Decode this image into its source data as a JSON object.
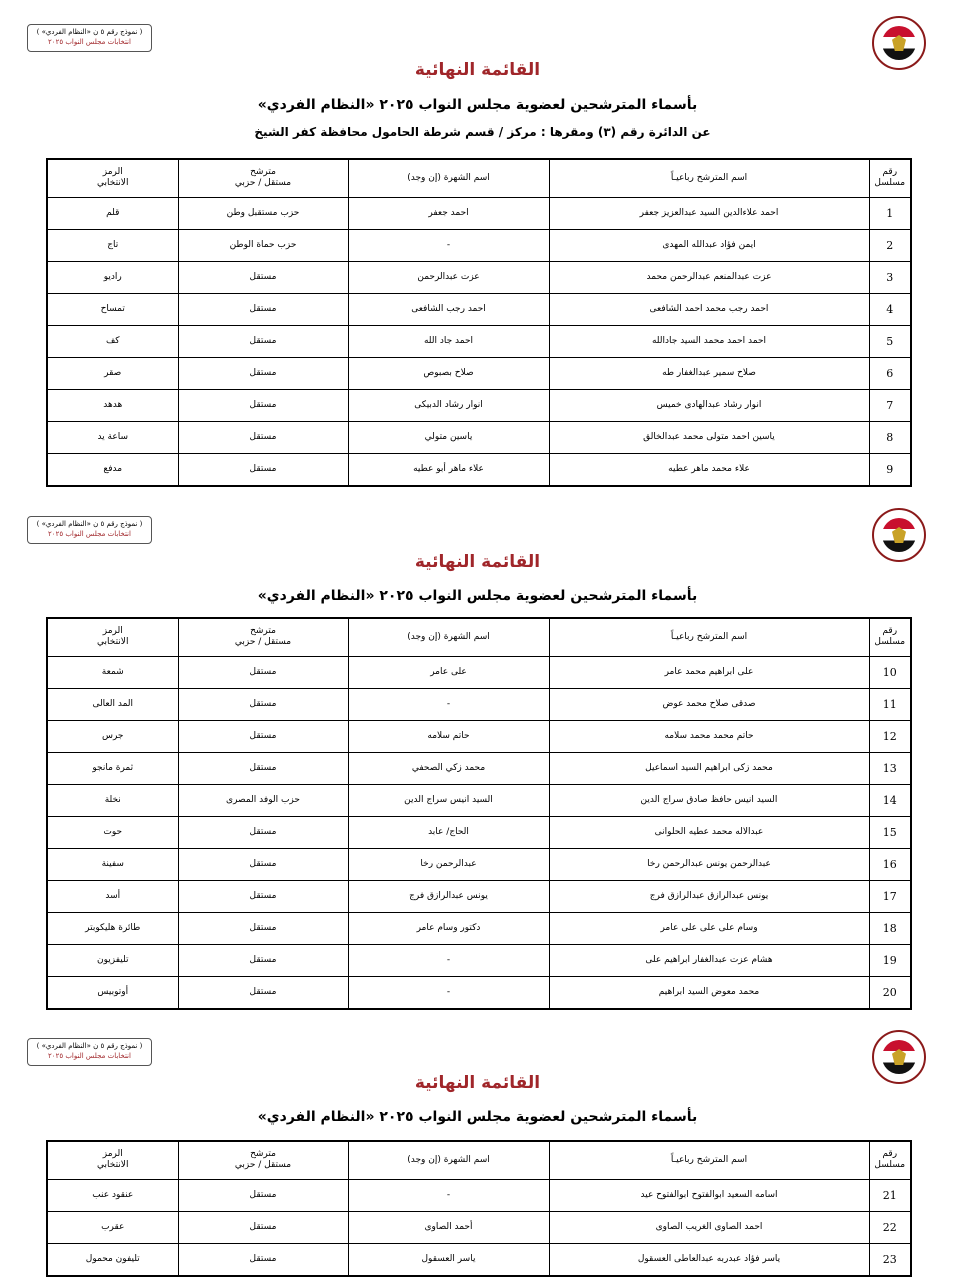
{
  "stamp": {
    "line1": "( نموذج رقم ٥ ن «النظام الفردي» )",
    "line2": "انتخابات مجلس النواب ٢٠٢٥"
  },
  "logo_icon": "egypt-national-elections-authority-logo",
  "colors": {
    "title": "#a0262a",
    "border": "#000000"
  },
  "sections": [
    {
      "title": "القائمة النهائية",
      "subtitle": "بأسماء المترشحين لعضوية مجلس النواب ٢٠٢٥ «النظام الفردي»",
      "district": "عن الدائرة رقم  (٣)   ومقرها : مركز / قسم شرطة  الحامول   محافظة  كفر الشيخ",
      "rows": [
        {
          "n": "1",
          "name": "احمد علاءالدين السيد عبدالعزيز جعفر",
          "nick": "احمد جعفر",
          "type": "حزب مستقبل وطن",
          "symbol": "قلم"
        },
        {
          "n": "2",
          "name": "ايمن فؤاد عبدالله المهدى",
          "nick": "-",
          "type": "حزب حماة الوطن",
          "symbol": "تاج"
        },
        {
          "n": "3",
          "name": "عزت عبدالمنعم عبدالرحمن محمد",
          "nick": "عزت عبدالرحمن",
          "type": "مستقل",
          "symbol": "راديو"
        },
        {
          "n": "4",
          "name": "احمد رجب محمد احمد الشافعى",
          "nick": "احمد رجب الشافعى",
          "type": "مستقل",
          "symbol": "تمساح"
        },
        {
          "n": "5",
          "name": "احمد احمد محمد السيد جادالله",
          "nick": "احمد جاد الله",
          "type": "مستقل",
          "symbol": "كف"
        },
        {
          "n": "6",
          "name": "صلاح سمير عبدالغفار طه",
          "nick": "صلاح بصبوص",
          "type": "مستقل",
          "symbol": "صقر"
        },
        {
          "n": "7",
          "name": "انوار رشاد عبدالهادى خميس",
          "nick": "انوار رشاد الدبيكى",
          "type": "مستقل",
          "symbol": "هدهد"
        },
        {
          "n": "8",
          "name": "ياسين احمد متولى محمد عبدالخالق",
          "nick": "ياسين متولي",
          "type": "مستقل",
          "symbol": "ساعة يد"
        },
        {
          "n": "9",
          "name": "علاء محمد ماهر عطيه",
          "nick": "علاء ماهر أبو عطيه",
          "type": "مستقل",
          "symbol": "مدفع"
        }
      ]
    },
    {
      "title": "القائمة النهائية",
      "subtitle": "بأسماء المترشحين لعضوية مجلس النواب ٢٠٢٥ «النظام الفردي»",
      "rows": [
        {
          "n": "10",
          "name": "على ابراهيم محمد عامر",
          "nick": "على عامر",
          "type": "مستقل",
          "symbol": "شمعة"
        },
        {
          "n": "11",
          "name": "صدقى صلاح محمد عوض",
          "nick": "-",
          "type": "مستقل",
          "symbol": "المد العالى"
        },
        {
          "n": "12",
          "name": "حاتم محمد محمد سلامه",
          "nick": "حاتم سلامه",
          "type": "مستقل",
          "symbol": "جرس"
        },
        {
          "n": "13",
          "name": "محمد زكى ابراهيم السيد اسماعيل",
          "nick": "محمد زكي الصحفي",
          "type": "مستقل",
          "symbol": "ثمرة مانجو"
        },
        {
          "n": "14",
          "name": "السيد انيس حافظ صادق سراج الدين",
          "nick": "السيد انيس سراج الدين",
          "type": "حزب الوفد المصرى",
          "symbol": "نخلة"
        },
        {
          "n": "15",
          "name": "عبدالاله محمد عطيه الحلوانى",
          "nick": "الحاج/ عابد",
          "type": "مستقل",
          "symbol": "حوت"
        },
        {
          "n": "16",
          "name": "عبدالرحمن يونس عبدالرحمن رخا",
          "nick": "عبدالرحمن رخا",
          "type": "مستقل",
          "symbol": "سفينة"
        },
        {
          "n": "17",
          "name": "يونس عبدالرازق عبدالرازق فرج",
          "nick": "يونس عبدالرازق فرج",
          "type": "مستقل",
          "symbol": "أسد"
        },
        {
          "n": "18",
          "name": "وسام على على على عامر",
          "nick": "دكتور وسام عامر",
          "type": "مستقل",
          "symbol": "طائرة هليكوبتر"
        },
        {
          "n": "19",
          "name": "هشام عزت عبدالغفار ابراهيم على",
          "nick": "-",
          "type": "مستقل",
          "symbol": "تليفزيون"
        },
        {
          "n": "20",
          "name": "محمد معوض السيد ابراهيم",
          "nick": "-",
          "type": "مستقل",
          "symbol": "أوتوبيس"
        }
      ]
    },
    {
      "title": "القائمة النهائية",
      "subtitle": "بأسماء المترشحين لعضوية مجلس النواب ٢٠٢٥ «النظام الفردي»",
      "rows": [
        {
          "n": "21",
          "name": "اسامه السعيد ابوالفتوح ابوالفتوح عيد",
          "nick": "-",
          "type": "مستقل",
          "symbol": "عنقود عنب"
        },
        {
          "n": "22",
          "name": "احمد الصاوى الغريب الصاوى",
          "nick": "أحمد الصاوى",
          "type": "مستقل",
          "symbol": "عقرب"
        },
        {
          "n": "23",
          "name": "ياسر فؤاد عبدربه عبدالعاطى العسقول",
          "nick": "ياسر العسقول",
          "type": "مستقل",
          "symbol": "تليفون محمول"
        }
      ]
    }
  ],
  "headers": {
    "serial": [
      "رقم",
      "مسلسل"
    ],
    "name": "اسم المترشح رباعيـاً",
    "nick": "اسم الشهرة (إن وجد)",
    "type": [
      "مترشح",
      "مستقل / حزبي"
    ],
    "symbol": [
      "الرمز",
      "الانتخابي"
    ]
  }
}
